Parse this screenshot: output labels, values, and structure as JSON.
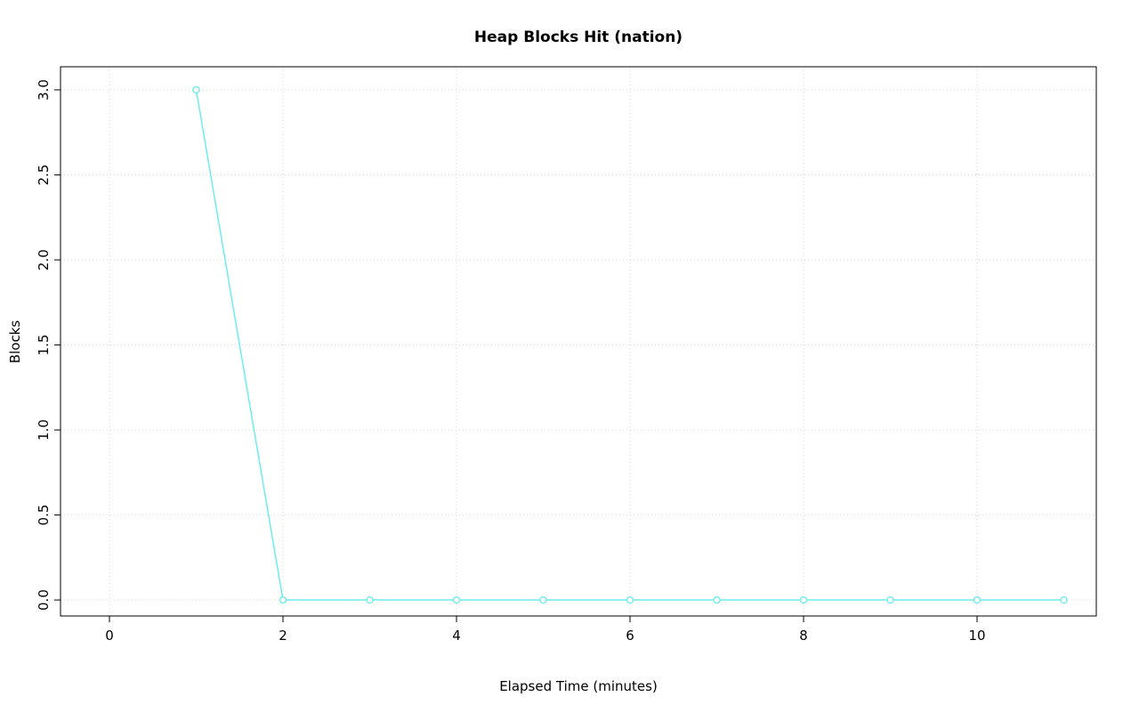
{
  "chart_data": {
    "type": "line",
    "title": "Heap Blocks Hit (nation)",
    "xlabel": "Elapsed Time (minutes)",
    "ylabel": "Blocks",
    "x": [
      1,
      2,
      3,
      4,
      5,
      6,
      7,
      8,
      9,
      10,
      11
    ],
    "values": [
      3,
      0,
      0,
      0,
      0,
      0,
      0,
      0,
      0,
      0,
      0
    ],
    "x_ticks": [
      0,
      2,
      4,
      6,
      8,
      10
    ],
    "x_tick_labels": [
      "0",
      "2",
      "4",
      "6",
      "8",
      "10"
    ],
    "y_ticks": [
      0.0,
      0.5,
      1.0,
      1.5,
      2.0,
      2.5,
      3.0
    ],
    "y_tick_labels": [
      "0.0",
      "0.5",
      "1.0",
      "1.5",
      "2.0",
      "2.5",
      "3.0"
    ],
    "xlim": [
      -0.564,
      11.374
    ],
    "ylim": [
      -0.094,
      3.136
    ],
    "grid": true,
    "legend": "none",
    "series_color": "#6FEDED",
    "grid_color": "#D9D9D9",
    "axis_color": "#000000",
    "marker": "open-circle",
    "line_style": "solid"
  }
}
